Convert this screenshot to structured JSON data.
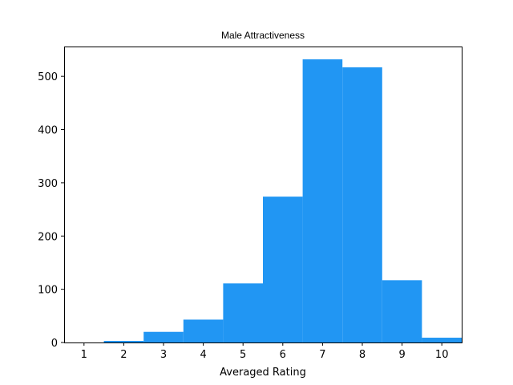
{
  "chart_data": {
    "type": "bar",
    "subtype": "histogram",
    "title": "Male Attractiveness",
    "xlabel": "Averaged Rating",
    "ylabel": "",
    "categories": [
      "1",
      "2",
      "3",
      "4",
      "5",
      "6",
      "7",
      "8",
      "9",
      "10"
    ],
    "bins": [
      {
        "center": 1,
        "value": 0
      },
      {
        "center": 2,
        "value": 3
      },
      {
        "center": 3,
        "value": 20
      },
      {
        "center": 4,
        "value": 43
      },
      {
        "center": 5,
        "value": 111
      },
      {
        "center": 6,
        "value": 274
      },
      {
        "center": 7,
        "value": 532
      },
      {
        "center": 8,
        "value": 517
      },
      {
        "center": 9,
        "value": 117
      },
      {
        "center": 10,
        "value": 9
      }
    ],
    "bin_width": 1,
    "xlim": [
      0.5,
      10.5
    ],
    "ylim": [
      0,
      556
    ],
    "xticks": [
      "1",
      "2",
      "3",
      "4",
      "5",
      "6",
      "7",
      "8",
      "9",
      "10"
    ],
    "yticks": [
      "0",
      "100",
      "200",
      "300",
      "400",
      "500"
    ],
    "grid": false,
    "legend": "none",
    "bar_color": "#2196f3"
  }
}
